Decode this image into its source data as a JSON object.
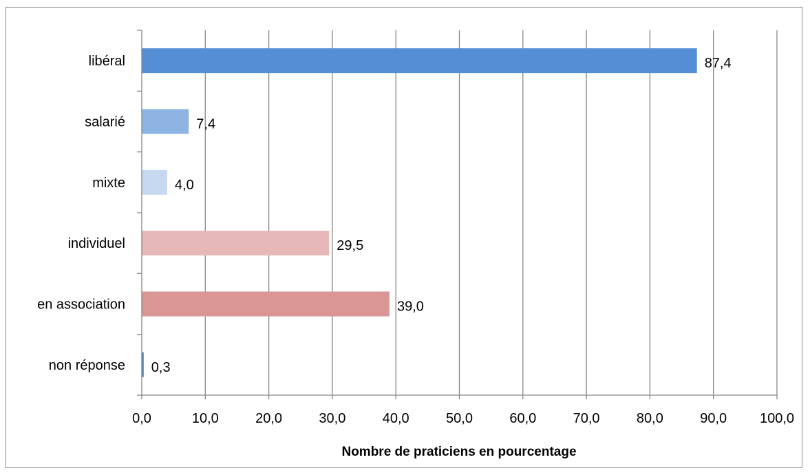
{
  "chart_data": {
    "type": "bar",
    "orientation": "horizontal",
    "categories": [
      "libéral",
      "salarié",
      "mixte",
      "individuel",
      "en association",
      "non réponse"
    ],
    "values": [
      87.4,
      7.4,
      4.0,
      29.5,
      39.0,
      0.3
    ],
    "value_labels": [
      "87,4",
      "7,4",
      "4,0",
      "29,5",
      "39,0",
      "0,3"
    ],
    "colors": [
      "#558ed5",
      "#8eb4e3",
      "#c6d9f1",
      "#e6b9b8",
      "#d99694",
      "#4f81bd"
    ],
    "xlabel": "Nombre de praticiens en pourcentage",
    "xlim": [
      0,
      100
    ],
    "xticks": [
      0,
      10,
      20,
      30,
      40,
      50,
      60,
      70,
      80,
      90,
      100
    ],
    "xtick_labels": [
      "0,0",
      "10,0",
      "20,0",
      "30,0",
      "40,0",
      "50,0",
      "60,0",
      "70,0",
      "80,0",
      "90,0",
      "100,0"
    ],
    "grid": "vertical major gridlines",
    "legend": "none"
  }
}
